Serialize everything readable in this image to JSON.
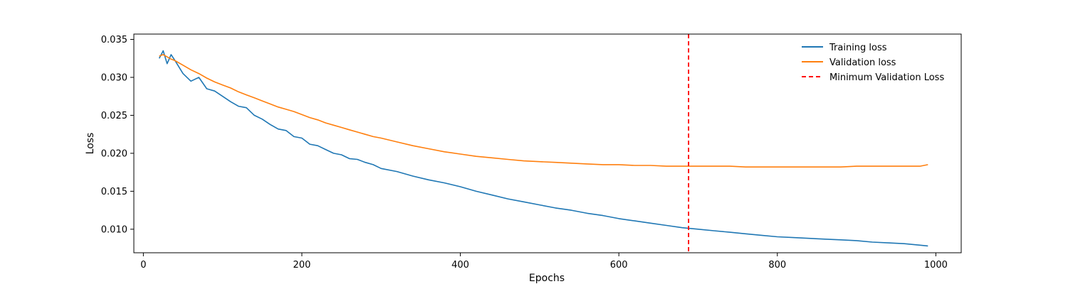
{
  "chart_data": {
    "type": "line",
    "xlabel": "Epochs",
    "ylabel": "Loss",
    "xlim": [
      -12,
      1032
    ],
    "ylim": [
      0.0069,
      0.0357
    ],
    "xticks": [
      0,
      200,
      400,
      600,
      800,
      1000
    ],
    "yticks": [
      0.01,
      0.015,
      0.02,
      0.025,
      0.03,
      0.035
    ],
    "ytick_labels": [
      "0.010",
      "0.015",
      "0.020",
      "0.025",
      "0.030",
      "0.035"
    ],
    "grid": false,
    "legend_position": "top-right",
    "colors": {
      "training": "#1f77b4",
      "validation": "#ff7f0e",
      "vline": "#ff0000"
    },
    "series": [
      {
        "name": "Training loss",
        "x": [
          20,
          25,
          30,
          35,
          40,
          50,
          60,
          70,
          80,
          90,
          100,
          110,
          120,
          130,
          140,
          150,
          160,
          170,
          180,
          190,
          200,
          210,
          220,
          230,
          240,
          250,
          260,
          270,
          280,
          290,
          300,
          320,
          340,
          360,
          380,
          400,
          420,
          440,
          460,
          480,
          500,
          520,
          540,
          560,
          580,
          600,
          620,
          640,
          660,
          680,
          700,
          720,
          740,
          760,
          780,
          800,
          820,
          840,
          860,
          880,
          900,
          920,
          940,
          960,
          980,
          990
        ],
        "values": [
          0.0325,
          0.0335,
          0.0318,
          0.033,
          0.0322,
          0.0305,
          0.0295,
          0.03,
          0.0285,
          0.0282,
          0.0275,
          0.0268,
          0.0262,
          0.026,
          0.025,
          0.0245,
          0.0238,
          0.0232,
          0.023,
          0.0222,
          0.022,
          0.0212,
          0.021,
          0.0205,
          0.02,
          0.0198,
          0.0193,
          0.0192,
          0.0188,
          0.0185,
          0.018,
          0.0176,
          0.017,
          0.0165,
          0.0161,
          0.0156,
          0.015,
          0.0145,
          0.014,
          0.0136,
          0.0132,
          0.0128,
          0.0125,
          0.0121,
          0.0118,
          0.0114,
          0.0111,
          0.0108,
          0.0105,
          0.0102,
          0.01,
          0.0098,
          0.0096,
          0.0094,
          0.0092,
          0.009,
          0.0089,
          0.0088,
          0.0087,
          0.0086,
          0.0085,
          0.0083,
          0.0082,
          0.0081,
          0.0079,
          0.0078
        ]
      },
      {
        "name": "Validation loss",
        "x": [
          20,
          25,
          30,
          35,
          40,
          50,
          60,
          70,
          80,
          90,
          100,
          110,
          120,
          130,
          140,
          150,
          160,
          170,
          180,
          190,
          200,
          210,
          220,
          230,
          240,
          250,
          260,
          270,
          280,
          290,
          300,
          320,
          340,
          360,
          380,
          400,
          420,
          440,
          460,
          480,
          500,
          520,
          540,
          560,
          580,
          600,
          620,
          640,
          660,
          680,
          700,
          720,
          740,
          760,
          780,
          800,
          820,
          840,
          860,
          880,
          900,
          920,
          940,
          960,
          980,
          990
        ],
        "values": [
          0.0328,
          0.033,
          0.0327,
          0.0324,
          0.0322,
          0.0316,
          0.031,
          0.0305,
          0.0299,
          0.0294,
          0.029,
          0.0286,
          0.0281,
          0.0277,
          0.0273,
          0.0269,
          0.0265,
          0.0261,
          0.0258,
          0.0255,
          0.0251,
          0.0247,
          0.0244,
          0.024,
          0.0237,
          0.0234,
          0.0231,
          0.0228,
          0.0225,
          0.0222,
          0.022,
          0.0215,
          0.021,
          0.0206,
          0.0202,
          0.0199,
          0.0196,
          0.0194,
          0.0192,
          0.019,
          0.0189,
          0.0188,
          0.0187,
          0.0186,
          0.0185,
          0.0185,
          0.0184,
          0.0184,
          0.0183,
          0.0183,
          0.0183,
          0.0183,
          0.0183,
          0.0182,
          0.0182,
          0.0182,
          0.0182,
          0.0182,
          0.0182,
          0.0182,
          0.0183,
          0.0183,
          0.0183,
          0.0183,
          0.0183,
          0.0185
        ]
      }
    ],
    "vline": {
      "name": "Minimum Validation Loss",
      "x": 688
    }
  }
}
